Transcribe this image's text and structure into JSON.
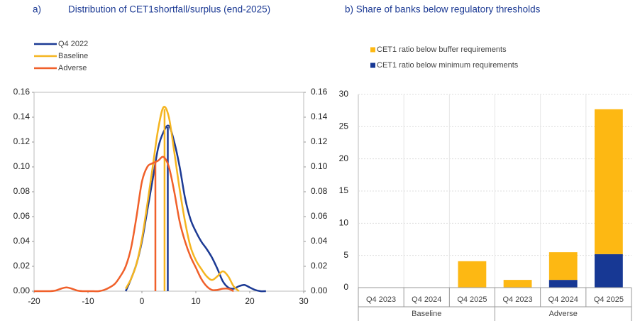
{
  "chart_data": [
    {
      "type": "line",
      "panel_label": "a)",
      "title": "Distribution of CET1shortfall/surplus (end-2025)",
      "x": [
        -20,
        -19,
        -18,
        -17,
        -16,
        -15,
        -14,
        -13,
        -12,
        -11,
        -10,
        -9,
        -8,
        -7,
        -6,
        -5,
        -4,
        -3,
        -2,
        -1,
        0,
        1,
        2,
        3,
        4,
        5,
        6,
        7,
        8,
        9,
        10,
        11,
        12,
        13,
        14,
        15,
        16,
        17,
        18,
        19,
        20,
        21,
        22,
        23
      ],
      "series": [
        {
          "name": "Q4 2022",
          "color": "#1c3a94",
          "median": 4.8,
          "values": [
            null,
            null,
            null,
            null,
            null,
            null,
            null,
            null,
            null,
            null,
            null,
            null,
            null,
            null,
            null,
            null,
            null,
            0,
            0.01,
            0.022,
            0.04,
            0.065,
            0.09,
            0.115,
            0.128,
            0.133,
            0.12,
            0.1,
            0.075,
            0.058,
            0.048,
            0.04,
            0.034,
            0.027,
            0.018,
            0.008,
            0.003,
            0.002,
            0.004,
            0.005,
            0.003,
            0.001,
            0,
            0
          ]
        },
        {
          "name": "Baseline",
          "color": "#f5b520",
          "median": 4.2,
          "values": [
            null,
            null,
            null,
            null,
            null,
            null,
            null,
            null,
            null,
            null,
            null,
            null,
            null,
            null,
            null,
            null,
            null,
            0.002,
            0.01,
            0.022,
            0.042,
            0.07,
            0.1,
            0.13,
            0.148,
            0.14,
            0.112,
            0.082,
            0.056,
            0.036,
            0.025,
            0.018,
            0.012,
            0.009,
            0.012,
            0.016,
            0.012,
            0.004,
            0,
            null,
            null,
            null,
            null,
            null
          ]
        },
        {
          "name": "Adverse",
          "color": "#f0602a",
          "median": 2.5,
          "values": [
            0,
            0,
            0,
            0,
            0.0005,
            0.002,
            0.003,
            0.002,
            0.0005,
            0,
            0,
            0,
            0,
            0.001,
            0.003,
            0.006,
            0.012,
            0.02,
            0.035,
            0.06,
            0.088,
            0.1,
            0.103,
            0.105,
            0.108,
            0.1,
            0.08,
            0.056,
            0.04,
            0.028,
            0.019,
            0.01,
            0.004,
            0.001,
            0.001,
            0.002,
            0.002,
            0,
            null,
            null,
            null,
            null,
            null,
            null
          ]
        }
      ],
      "xlim": [
        -20,
        30
      ],
      "xticks": [
        -20,
        -10,
        0,
        10,
        20,
        30
      ],
      "ylim": [
        0,
        0.16
      ],
      "yticks": [
        {
          "value": 0,
          "label": "0.00"
        },
        {
          "value": 0.02,
          "label": "0.02"
        },
        {
          "value": 0.04,
          "label": "0.04"
        },
        {
          "value": 0.06,
          "label": "0.06"
        },
        {
          "value": 0.08,
          "label": "0.08"
        },
        {
          "value": 0.1,
          "label": "0.10"
        },
        {
          "value": 0.12,
          "label": "0.12"
        },
        {
          "value": 0.14,
          "label": "0.14"
        },
        {
          "value": 0.16,
          "label": "0.16"
        }
      ],
      "y2lim": [
        0,
        0.16
      ],
      "y2ticks": [
        {
          "value": 0,
          "label": "0.00"
        },
        {
          "value": 0.02,
          "label": "0.02"
        },
        {
          "value": 0.04,
          "label": "0.04"
        },
        {
          "value": 0.06,
          "label": "0.06"
        },
        {
          "value": 0.08,
          "label": "0.08"
        },
        {
          "value": 0.1,
          "label": "0.10"
        },
        {
          "value": 0.12,
          "label": "0.12"
        },
        {
          "value": 0.14,
          "label": "0.14"
        },
        {
          "value": 0.16,
          "label": "0.16"
        }
      ],
      "legend": "upper left"
    },
    {
      "type": "stacked_bar",
      "title": "b) Share of banks below regulatory thresholds",
      "categories": [
        "Q4 2023",
        "Q4 2024",
        "Q4 2025",
        "Q4 2023",
        "Q4 2024",
        "Q4 2025"
      ],
      "groups": [
        "Baseline",
        "Adverse"
      ],
      "series": [
        {
          "name": "CET1 ratio below minimum requirements",
          "color": "#173894",
          "values": [
            0,
            0,
            0,
            0,
            1.2,
            5.2
          ]
        },
        {
          "name": "CET1 ratio below buffer requirements",
          "color": "#fdb813",
          "values": [
            0,
            0,
            4.1,
            1.2,
            4.3,
            22.5
          ]
        }
      ],
      "ylim": [
        0,
        30
      ],
      "yticks": [
        0,
        5,
        10,
        15,
        20,
        25,
        30
      ],
      "grid": true,
      "legend": "top"
    }
  ]
}
